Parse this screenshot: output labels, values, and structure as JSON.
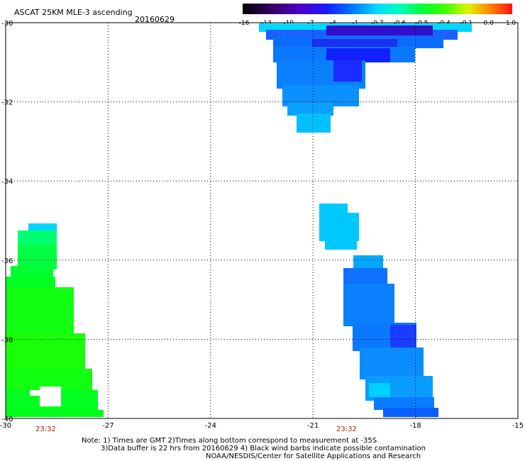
{
  "title": "ASCAT 25KM MLE-3 ascending",
  "date": "20160629",
  "colorbar": {
    "labels": [
      "-16",
      "-13",
      "-10",
      "-7",
      "-4",
      "-1",
      "-0.7",
      "-0.6",
      "-0.5",
      "-0.4",
      "-0.1",
      "0.0",
      "1.0"
    ],
    "colors": [
      "#1a0018",
      "#3a0070",
      "#5a00c8",
      "#2020ff",
      "#0060ff",
      "#00a0ff",
      "#00e8ff",
      "#00ff90",
      "#00ff20",
      "#80ff00",
      "#f0f000",
      "#ff8000",
      "#ff1010"
    ]
  },
  "axes": {
    "x_ticks": [
      "-30",
      "-27",
      "-24",
      "-21",
      "-18",
      "-15"
    ],
    "y_ticks": [
      "-30",
      "-32",
      "-34",
      "-36",
      "-38",
      "-40"
    ]
  },
  "pass_times": [
    "23:32",
    "23:32"
  ],
  "notes": [
    "Note: 1) Times are GMT 2)Times along bottom correspond to measurement at -35S",
    "3)Data buffer is 22 hrs from 20160629 4) Black wind barbs indicate possible contamination",
    "NOAA/NESDIS/Center for Satellite Applications and Research"
  ],
  "colors": {
    "green": "#00ff1a",
    "cyan": "#00c8ff",
    "blue": "#0a7cff",
    "deep_blue": "#1e3cff",
    "purple": "#3a10d8",
    "time_label": "#b02000"
  }
}
